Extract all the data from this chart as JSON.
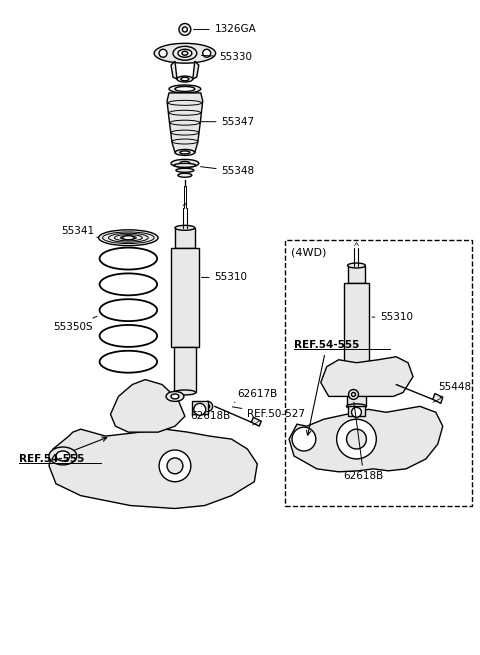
{
  "bg_color": "#ffffff",
  "line_color": "#000000",
  "part_color": "#e8e8e8",
  "figsize": [
    4.8,
    6.55
  ],
  "dpi": 100,
  "xlim": [
    0,
    480
  ],
  "ylim": [
    0,
    655
  ]
}
